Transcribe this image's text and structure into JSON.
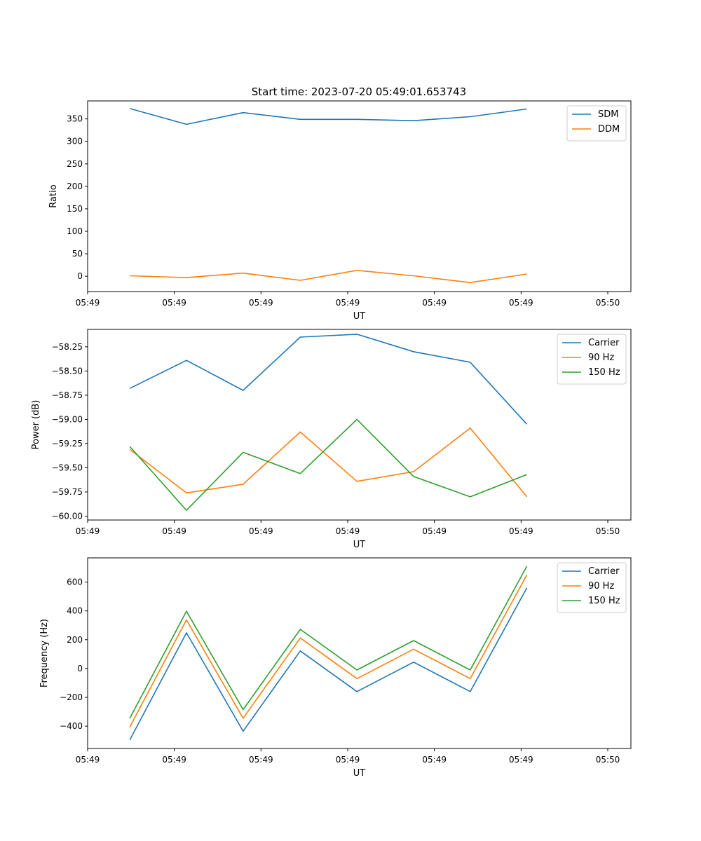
{
  "title": "Start time: 2023-07-20 05:49:01.653743",
  "chart_data": [
    {
      "type": "line",
      "ylabel": "Ratio",
      "xlabel": "UT",
      "xlim": [
        0,
        9.4
      ],
      "ylim": [
        -34,
        390
      ],
      "x_ticks": [
        {
          "v": 0,
          "label": "05:49"
        },
        {
          "v": 1.5,
          "label": "05:49"
        },
        {
          "v": 3,
          "label": "05:49"
        },
        {
          "v": 4.5,
          "label": "05:49"
        },
        {
          "v": 6,
          "label": "05:49"
        },
        {
          "v": 7.5,
          "label": "05:49"
        },
        {
          "v": 9,
          "label": "05:50"
        }
      ],
      "y_ticks": [
        {
          "v": 0,
          "label": "0"
        },
        {
          "v": 50,
          "label": "50"
        },
        {
          "v": 100,
          "label": "100"
        },
        {
          "v": 150,
          "label": "150"
        },
        {
          "v": 200,
          "label": "200"
        },
        {
          "v": 250,
          "label": "250"
        },
        {
          "v": 300,
          "label": "300"
        },
        {
          "v": 350,
          "label": "350"
        }
      ],
      "x": [
        0.73,
        1.71,
        2.69,
        3.68,
        4.66,
        5.64,
        6.62,
        7.6
      ],
      "series": [
        {
          "name": "SDM",
          "color": "#1f77b4",
          "values": [
            373,
            338,
            364,
            349,
            349,
            346,
            355,
            372
          ]
        },
        {
          "name": "DDM",
          "color": "#ff7f0e",
          "values": [
            1,
            -3,
            7,
            -9,
            13,
            1,
            -14,
            5
          ]
        }
      ]
    },
    {
      "type": "line",
      "ylabel": "Power (dB)",
      "xlabel": "UT",
      "xlim": [
        0,
        9.4
      ],
      "ylim": [
        -60.04,
        -58.07
      ],
      "x_ticks": [
        {
          "v": 0,
          "label": "05:49"
        },
        {
          "v": 1.5,
          "label": "05:49"
        },
        {
          "v": 3,
          "label": "05:49"
        },
        {
          "v": 4.5,
          "label": "05:49"
        },
        {
          "v": 6,
          "label": "05:49"
        },
        {
          "v": 7.5,
          "label": "05:49"
        },
        {
          "v": 9,
          "label": "05:50"
        }
      ],
      "y_ticks": [
        {
          "v": -60.0,
          "label": "−60.00"
        },
        {
          "v": -59.75,
          "label": "−59.75"
        },
        {
          "v": -59.5,
          "label": "−59.50"
        },
        {
          "v": -59.25,
          "label": "−59.25"
        },
        {
          "v": -59.0,
          "label": "−59.00"
        },
        {
          "v": -58.75,
          "label": "−58.75"
        },
        {
          "v": -58.5,
          "label": "−58.50"
        },
        {
          "v": -58.25,
          "label": "−58.25"
        }
      ],
      "x": [
        0.73,
        1.71,
        2.69,
        3.68,
        4.66,
        5.64,
        6.62,
        7.6
      ],
      "series": [
        {
          "name": "Carrier",
          "color": "#1f77b4",
          "values": [
            -58.68,
            -58.39,
            -58.7,
            -58.15,
            -58.12,
            -58.3,
            -58.41,
            -59.05
          ]
        },
        {
          "name": "90 Hz",
          "color": "#ff7f0e",
          "values": [
            -59.31,
            -59.76,
            -59.67,
            -59.13,
            -59.64,
            -59.54,
            -59.09,
            -59.8
          ]
        },
        {
          "name": "150 Hz",
          "color": "#2ca02c",
          "values": [
            -59.28,
            -59.94,
            -59.34,
            -59.56,
            -59.0,
            -59.59,
            -59.8,
            -59.57
          ]
        }
      ]
    },
    {
      "type": "line",
      "ylabel": "Frequency (Hz)",
      "xlabel": "UT",
      "xlim": [
        0,
        9.4
      ],
      "ylim": [
        -555,
        768
      ],
      "x_ticks": [
        {
          "v": 0,
          "label": "05:49"
        },
        {
          "v": 1.5,
          "label": "05:49"
        },
        {
          "v": 3,
          "label": "05:49"
        },
        {
          "v": 4.5,
          "label": "05:49"
        },
        {
          "v": 6,
          "label": "05:49"
        },
        {
          "v": 7.5,
          "label": "05:49"
        },
        {
          "v": 9,
          "label": "05:50"
        }
      ],
      "y_ticks": [
        {
          "v": -400,
          "label": "−400"
        },
        {
          "v": -200,
          "label": "−200"
        },
        {
          "v": 0,
          "label": "0"
        },
        {
          "v": 200,
          "label": "200"
        },
        {
          "v": 400,
          "label": "400"
        },
        {
          "v": 600,
          "label": "600"
        }
      ],
      "x": [
        0.73,
        1.71,
        2.69,
        3.68,
        4.66,
        5.64,
        6.62,
        7.6
      ],
      "series": [
        {
          "name": "Carrier",
          "color": "#1f77b4",
          "values": [
            -495,
            248,
            -435,
            122,
            -160,
            44,
            -160,
            560
          ]
        },
        {
          "name": "90 Hz",
          "color": "#ff7f0e",
          "values": [
            -405,
            338,
            -345,
            212,
            -70,
            134,
            -70,
            650
          ]
        },
        {
          "name": "150 Hz",
          "color": "#2ca02c",
          "values": [
            -345,
            398,
            -285,
            272,
            -10,
            194,
            -10,
            710
          ]
        }
      ]
    }
  ]
}
